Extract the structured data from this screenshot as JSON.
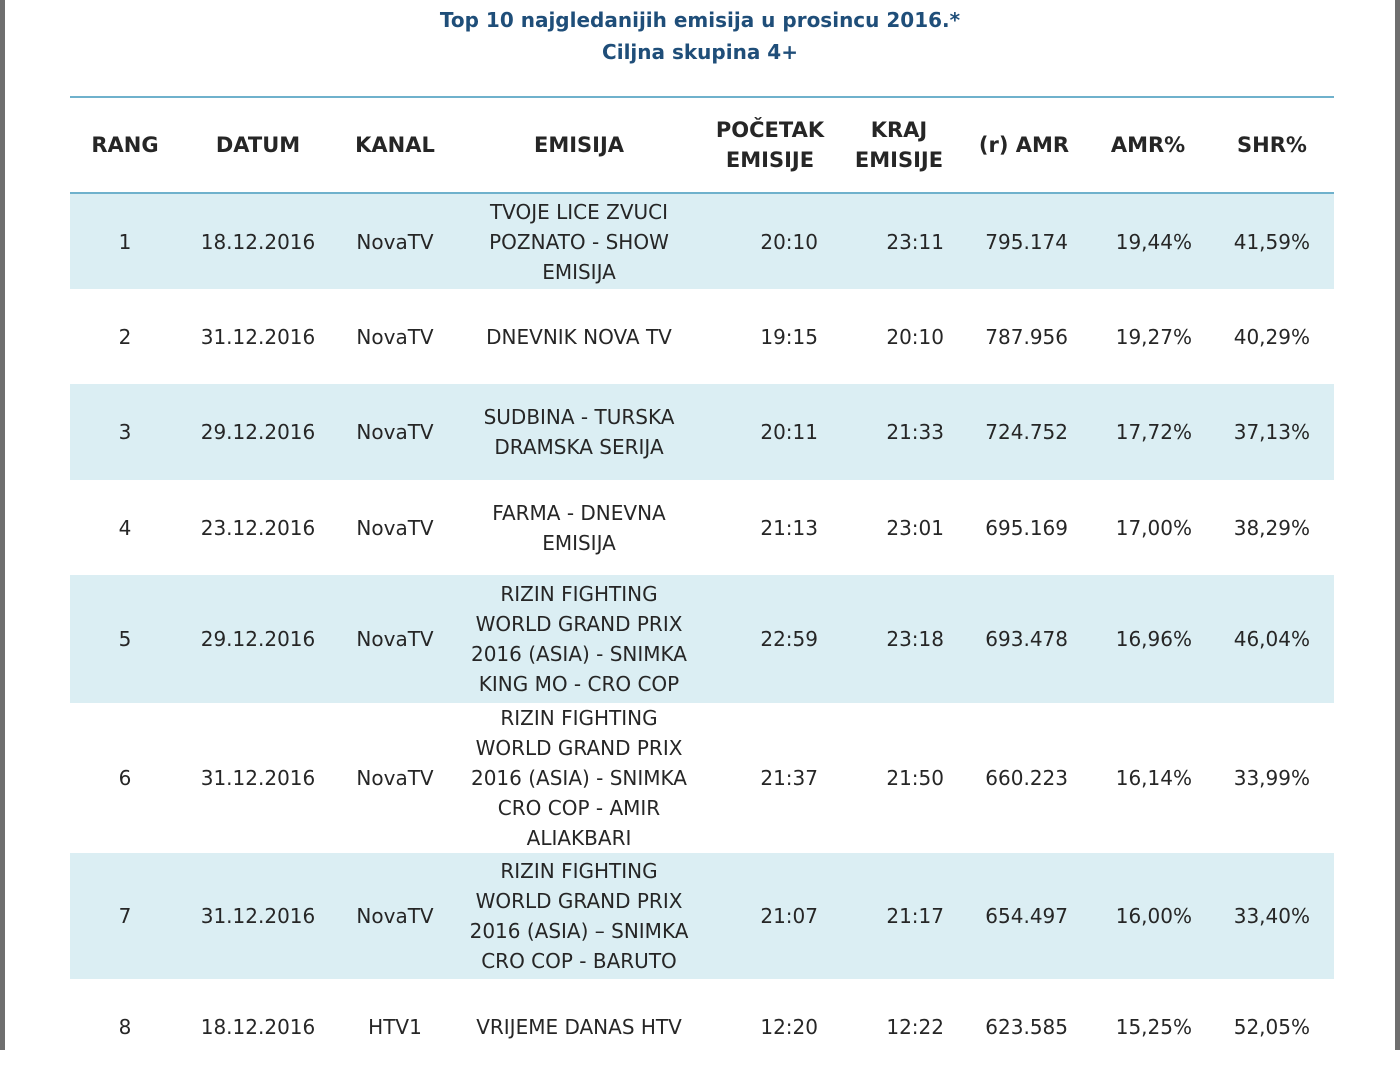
{
  "title": {
    "line1": "Top 10 najgledanijih emisija u prosincu 2016.*",
    "line2": "Ciljna skupina 4+"
  },
  "table": {
    "headers": {
      "rang": "RANG",
      "datum": "DATUM",
      "kanal": "KANAL",
      "emisija": "EMISIJA",
      "pocetak_1": "POČETAK",
      "pocetak_2": "EMISIJE",
      "kraj_1": "KRAJ",
      "kraj_2": "EMISIJE",
      "amr": "(r) AMR",
      "amr_pct": "AMR%",
      "shr_pct": "SHR%"
    },
    "rows": [
      {
        "rang": "1",
        "datum": "18.12.2016",
        "kanal": "NovaTV",
        "emisija": [
          "TVOJE LICE ZVUCI",
          "POZNATO - SHOW",
          "EMISIJA"
        ],
        "pocetak": "20:10",
        "kraj": "23:11",
        "amr": "795.174",
        "amr_pct": "19,44%",
        "shr_pct": "41,59%"
      },
      {
        "rang": "2",
        "datum": "31.12.2016",
        "kanal": "NovaTV",
        "emisija": [
          "DNEVNIK NOVA TV"
        ],
        "pocetak": "19:15",
        "kraj": "20:10",
        "amr": "787.956",
        "amr_pct": "19,27%",
        "shr_pct": "40,29%"
      },
      {
        "rang": "3",
        "datum": "29.12.2016",
        "kanal": "NovaTV",
        "emisija": [
          "SUDBINA - TURSKA",
          "DRAMSKA SERIJA"
        ],
        "pocetak": "20:11",
        "kraj": "21:33",
        "amr": "724.752",
        "amr_pct": "17,72%",
        "shr_pct": "37,13%"
      },
      {
        "rang": "4",
        "datum": "23.12.2016",
        "kanal": "NovaTV",
        "emisija": [
          "FARMA - DNEVNA",
          "EMISIJA"
        ],
        "pocetak": "21:13",
        "kraj": "23:01",
        "amr": "695.169",
        "amr_pct": "17,00%",
        "shr_pct": "38,29%"
      },
      {
        "rang": "5",
        "datum": "29.12.2016",
        "kanal": "NovaTV",
        "emisija": [
          "RIZIN FIGHTING",
          "WORLD GRAND PRIX",
          "2016 (ASIA) - SNIMKA",
          "KING MO - CRO COP"
        ],
        "pocetak": "22:59",
        "kraj": "23:18",
        "amr": "693.478",
        "amr_pct": "16,96%",
        "shr_pct": "46,04%"
      },
      {
        "rang": "6",
        "datum": "31.12.2016",
        "kanal": "NovaTV",
        "emisija": [
          "RIZIN FIGHTING",
          "WORLD GRAND PRIX",
          "2016 (ASIA) - SNIMKA",
          "CRO COP - AMIR",
          "ALIAKBARI"
        ],
        "pocetak": "21:37",
        "kraj": "21:50",
        "amr": "660.223",
        "amr_pct": "16,14%",
        "shr_pct": "33,99%"
      },
      {
        "rang": "7",
        "datum": "31.12.2016",
        "kanal": "NovaTV",
        "emisija": [
          "RIZIN FIGHTING",
          "WORLD GRAND PRIX",
          "2016 (ASIA) – SNIMKA",
          "CRO COP - BARUTO"
        ],
        "pocetak": "21:07",
        "kraj": "21:17",
        "amr": "654.497",
        "amr_pct": "16,00%",
        "shr_pct": "33,40%"
      },
      {
        "rang": "8",
        "datum": "18.12.2016",
        "kanal": "HTV1",
        "emisija": [
          "VRIJEME DANAS HTV"
        ],
        "pocetak": "12:20",
        "kraj": "12:22",
        "amr": "623.585",
        "amr_pct": "15,25%",
        "shr_pct": "52,05%"
      }
    ]
  },
  "colors": {
    "title": "#1f4e79",
    "rule": "#6fb1cc",
    "shade": "#dbeef3",
    "text": "#262626"
  }
}
